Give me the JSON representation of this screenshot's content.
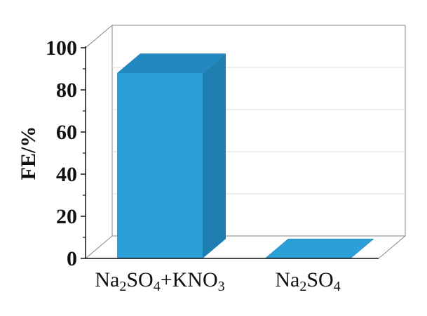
{
  "chart_data": {
    "type": "bar",
    "title": "",
    "xlabel": "",
    "ylabel": "FE/%",
    "ylim": [
      0,
      100
    ],
    "yticks": [
      "0",
      "20",
      "40",
      "60",
      "80",
      "100"
    ],
    "categories": [
      {
        "label_parts": [
          {
            "text": "Na",
            "sub": false
          },
          {
            "text": "2",
            "sub": true
          },
          {
            "text": "SO",
            "sub": false
          },
          {
            "text": "4",
            "sub": true
          },
          {
            "text": "+KNO",
            "sub": false
          },
          {
            "text": "3",
            "sub": true
          }
        ]
      },
      {
        "label_parts": [
          {
            "text": "Na",
            "sub": false
          },
          {
            "text": "2",
            "sub": true
          },
          {
            "text": "SO",
            "sub": false
          },
          {
            "text": "4",
            "sub": true
          }
        ]
      }
    ],
    "values": [
      88,
      0
    ],
    "grid": true,
    "style": "3d",
    "colors": {
      "bar_front": "#2b9fd8",
      "bar_top": "#2288c0",
      "bar_side": "#1f7fb0",
      "floor": "#2b9fd8",
      "grid": "#dddddd",
      "frame": "#888888",
      "axis": "#111111"
    }
  }
}
